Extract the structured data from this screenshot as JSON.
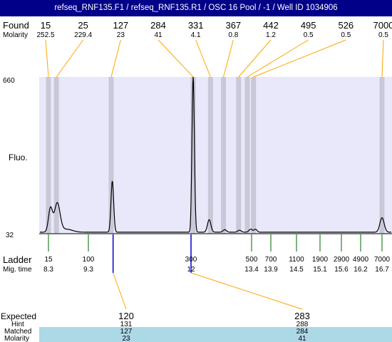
{
  "title": "refseq_RNF135.F1 / refseq_RNF135.R1 / OSC 16 Pool / -1 / Well ID 1034906",
  "labels": {
    "found": "Found",
    "molarity": "Molarity",
    "fluo": "Fluo.",
    "ladder": "Ladder",
    "mig_time": "Mig. time",
    "expected": "Expected",
    "hint": "Hint",
    "matched": "Matched",
    "molarity_bottom": "Molarity"
  },
  "colors": {
    "title_bg": "#000088",
    "plot_bg": "#e8e8fa",
    "peak_band": "#c8c8d8",
    "trace": "#000000",
    "found_line": "#ffa500",
    "ladder_line": "#006400",
    "marker_line": "#0000cd",
    "matched_band": "#add8e6"
  },
  "chart_data": {
    "type": "line",
    "title": "refseq_RNF135.F1 / refseq_RNF135.R1 / OSC 16 Pool / -1 / Well ID 1034906",
    "ylabel": "Fluo.",
    "ylim": [
      32,
      660
    ],
    "y_ticks": [
      "660",
      "32"
    ],
    "found_peaks": [
      {
        "size": "15",
        "molarity": "252.5",
        "mig_time": 8.3
      },
      {
        "size": "25",
        "molarity": "229.4",
        "mig_time": 8.5
      },
      {
        "size": "127",
        "molarity": "23",
        "mig_time": 9.9
      },
      {
        "size": "284",
        "molarity": "41",
        "mig_time": 12.05
      },
      {
        "size": "331",
        "molarity": "4.1",
        "mig_time": 12.45
      },
      {
        "size": "367",
        "molarity": "0.8",
        "mig_time": 12.75
      },
      {
        "size": "442",
        "molarity": "1.2",
        "mig_time": 13.1
      },
      {
        "size": "495",
        "molarity": "0.5",
        "mig_time": 13.3
      },
      {
        "size": "526",
        "molarity": "0.5",
        "mig_time": 13.45
      },
      {
        "size": "7000",
        "molarity": "0.5",
        "mig_time": 16.7
      }
    ],
    "ladder": [
      {
        "size": "15",
        "mig_time": "8.3"
      },
      {
        "size": "100",
        "mig_time": "9.3"
      },
      {
        "size": "300",
        "mig_time": "12"
      },
      {
        "size": "500",
        "mig_time": "13.4"
      },
      {
        "size": "700",
        "mig_time": "13.9"
      },
      {
        "size": "1100",
        "mig_time": "14.5"
      },
      {
        "size": "1900",
        "mig_time": "15.1"
      },
      {
        "size": "2900",
        "mig_time": "15.6"
      },
      {
        "size": "4900",
        "mig_time": "16.2"
      },
      {
        "size": "7000",
        "mig_time": "16.7"
      }
    ],
    "expected": [
      {
        "expected": "120",
        "hint": "131",
        "matched": "127",
        "molarity": "23",
        "mig_time": 9.95
      },
      {
        "expected": "283",
        "hint": "288",
        "matched": "284",
        "molarity": "41",
        "mig_time": 12.0
      }
    ],
    "trace": {
      "baseline": 38,
      "peaks": [
        {
          "mig_time": 8.35,
          "height": 95,
          "width": 0.05
        },
        {
          "mig_time": 8.52,
          "height": 115,
          "width": 0.07
        },
        {
          "mig_time": 8.75,
          "height": 12,
          "width": 0.15
        },
        {
          "mig_time": 9.93,
          "height": 205,
          "width": 0.035
        },
        {
          "mig_time": 12.05,
          "height": 622,
          "width": 0.028
        },
        {
          "mig_time": 12.42,
          "height": 50,
          "width": 0.04
        },
        {
          "mig_time": 12.78,
          "height": 10,
          "width": 0.04
        },
        {
          "mig_time": 13.12,
          "height": 8,
          "width": 0.04
        },
        {
          "mig_time": 13.38,
          "height": 12,
          "width": 0.04
        },
        {
          "mig_time": 13.5,
          "height": 12,
          "width": 0.04
        },
        {
          "mig_time": 16.7,
          "height": 58,
          "width": 0.05
        }
      ]
    }
  }
}
